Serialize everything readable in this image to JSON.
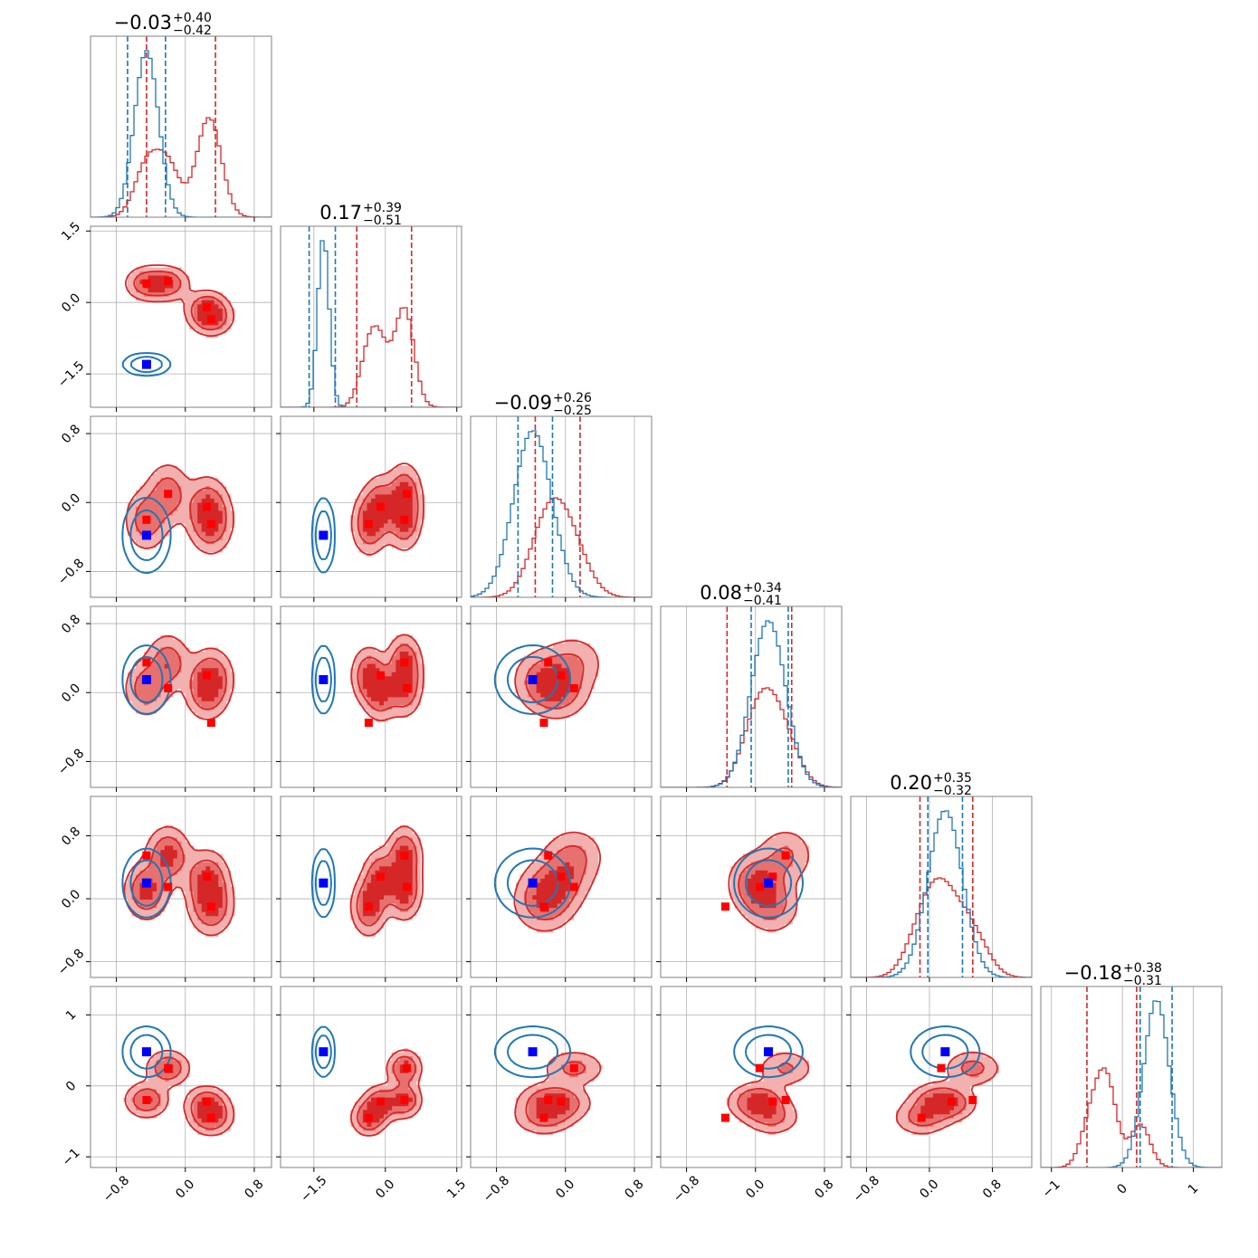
{
  "colors": {
    "red": "#d62728",
    "red_mid": "#e7716f",
    "red_light": "#f2b0ae",
    "blue": "#1f77b4",
    "blue_marker": "#0000ff",
    "red_marker": "#ff0000",
    "grid": "#b0b0b0",
    "frame": "#808080"
  },
  "chart_data": {
    "type": "corner",
    "n_params": 6,
    "ranges": [
      [
        -1.1,
        1.0
      ],
      [
        -2.2,
        1.6
      ],
      [
        -1.1,
        1.0
      ],
      [
        -1.1,
        1.0
      ],
      [
        -1.0,
        1.3
      ],
      [
        -1.15,
        1.4
      ]
    ],
    "ticks": [
      {
        "values": [
          -0.8,
          0.0,
          0.8
        ],
        "labels": [
          "−0.8",
          "0.0",
          "0.8"
        ]
      },
      {
        "values": [
          -1.5,
          0.0,
          1.5
        ],
        "labels": [
          "−1.5",
          "0.0",
          "1.5"
        ]
      },
      {
        "values": [
          -0.8,
          0.0,
          0.8
        ],
        "labels": [
          "−0.8",
          "0.0",
          "0.8"
        ]
      },
      {
        "values": [
          -0.8,
          0.0,
          0.8
        ],
        "labels": [
          "−0.8",
          "0.0",
          "0.8"
        ]
      },
      {
        "values": [
          -0.8,
          0.0,
          0.8
        ],
        "labels": [
          "−0.8",
          "0.0",
          "0.8"
        ]
      },
      {
        "values": [
          -1,
          0,
          1
        ],
        "labels": [
          "−1",
          "0",
          "1"
        ]
      }
    ],
    "titles": [
      {
        "main": "−0.03",
        "plus": "+0.40",
        "minus": "−0.42"
      },
      {
        "main": "0.17",
        "plus": "+0.39",
        "minus": "−0.51"
      },
      {
        "main": "−0.09",
        "plus": "+0.26",
        "minus": "−0.25"
      },
      {
        "main": "0.08",
        "plus": "+0.34",
        "minus": "−0.41"
      },
      {
        "main": "0.20",
        "plus": "+0.35",
        "minus": "−0.32"
      },
      {
        "main": "−0.18",
        "plus": "+0.38",
        "minus": "−0.31"
      }
    ],
    "series": [
      {
        "color_key": "red",
        "components": [
          [
            -0.45,
            0.4,
            -0.2,
            0.05,
            0.1,
            -0.2
          ],
          [
            -0.2,
            0.4,
            0.1,
            0.35,
            0.55,
            0.25
          ],
          [
            0.25,
            -0.1,
            -0.05,
            0.0,
            0.25,
            -0.25
          ],
          [
            0.3,
            -0.35,
            -0.25,
            0.2,
            -0.1,
            -0.45
          ]
        ],
        "spread": [
          0.14,
          0.2,
          0.2,
          0.18,
          0.2,
          0.14
        ],
        "quantile_lines": [
          [
            -0.45,
            0.35
          ],
          [
            -0.6,
            0.55
          ],
          [
            -0.35,
            0.17
          ],
          [
            -0.33,
            0.42
          ],
          [
            -0.12,
            0.55
          ],
          [
            -0.5,
            0.2
          ]
        ]
      },
      {
        "color_key": "blue",
        "components": [
          [
            -0.45,
            -1.3,
            -0.38,
            0.15,
            0.2,
            0.48
          ]
        ],
        "spread": [
          0.14,
          0.12,
          0.22,
          0.2,
          0.22,
          0.18
        ],
        "quantile_lines": [
          [
            -0.67,
            -0.23
          ],
          [
            -1.6,
            -1.05
          ],
          [
            -0.55,
            -0.15
          ],
          [
            -0.05,
            0.38
          ],
          [
            -0.02,
            0.42
          ],
          [
            0.25,
            0.7
          ]
        ]
      }
    ],
    "blue_markers": [
      -0.45,
      -1.3,
      -0.38,
      0.15,
      0.2,
      0.48
    ],
    "red_markers": [
      [
        -0.45,
        0.4,
        -0.2,
        0.35,
        0.55,
        -0.2
      ],
      [
        -0.2,
        0.45,
        0.1,
        0.05,
        0.15,
        0.25
      ],
      [
        0.25,
        -0.1,
        -0.05,
        0.2,
        0.28,
        -0.22
      ],
      [
        0.3,
        -0.35,
        -0.25,
        -0.35,
        -0.1,
        -0.45
      ]
    ],
    "grid": true
  }
}
